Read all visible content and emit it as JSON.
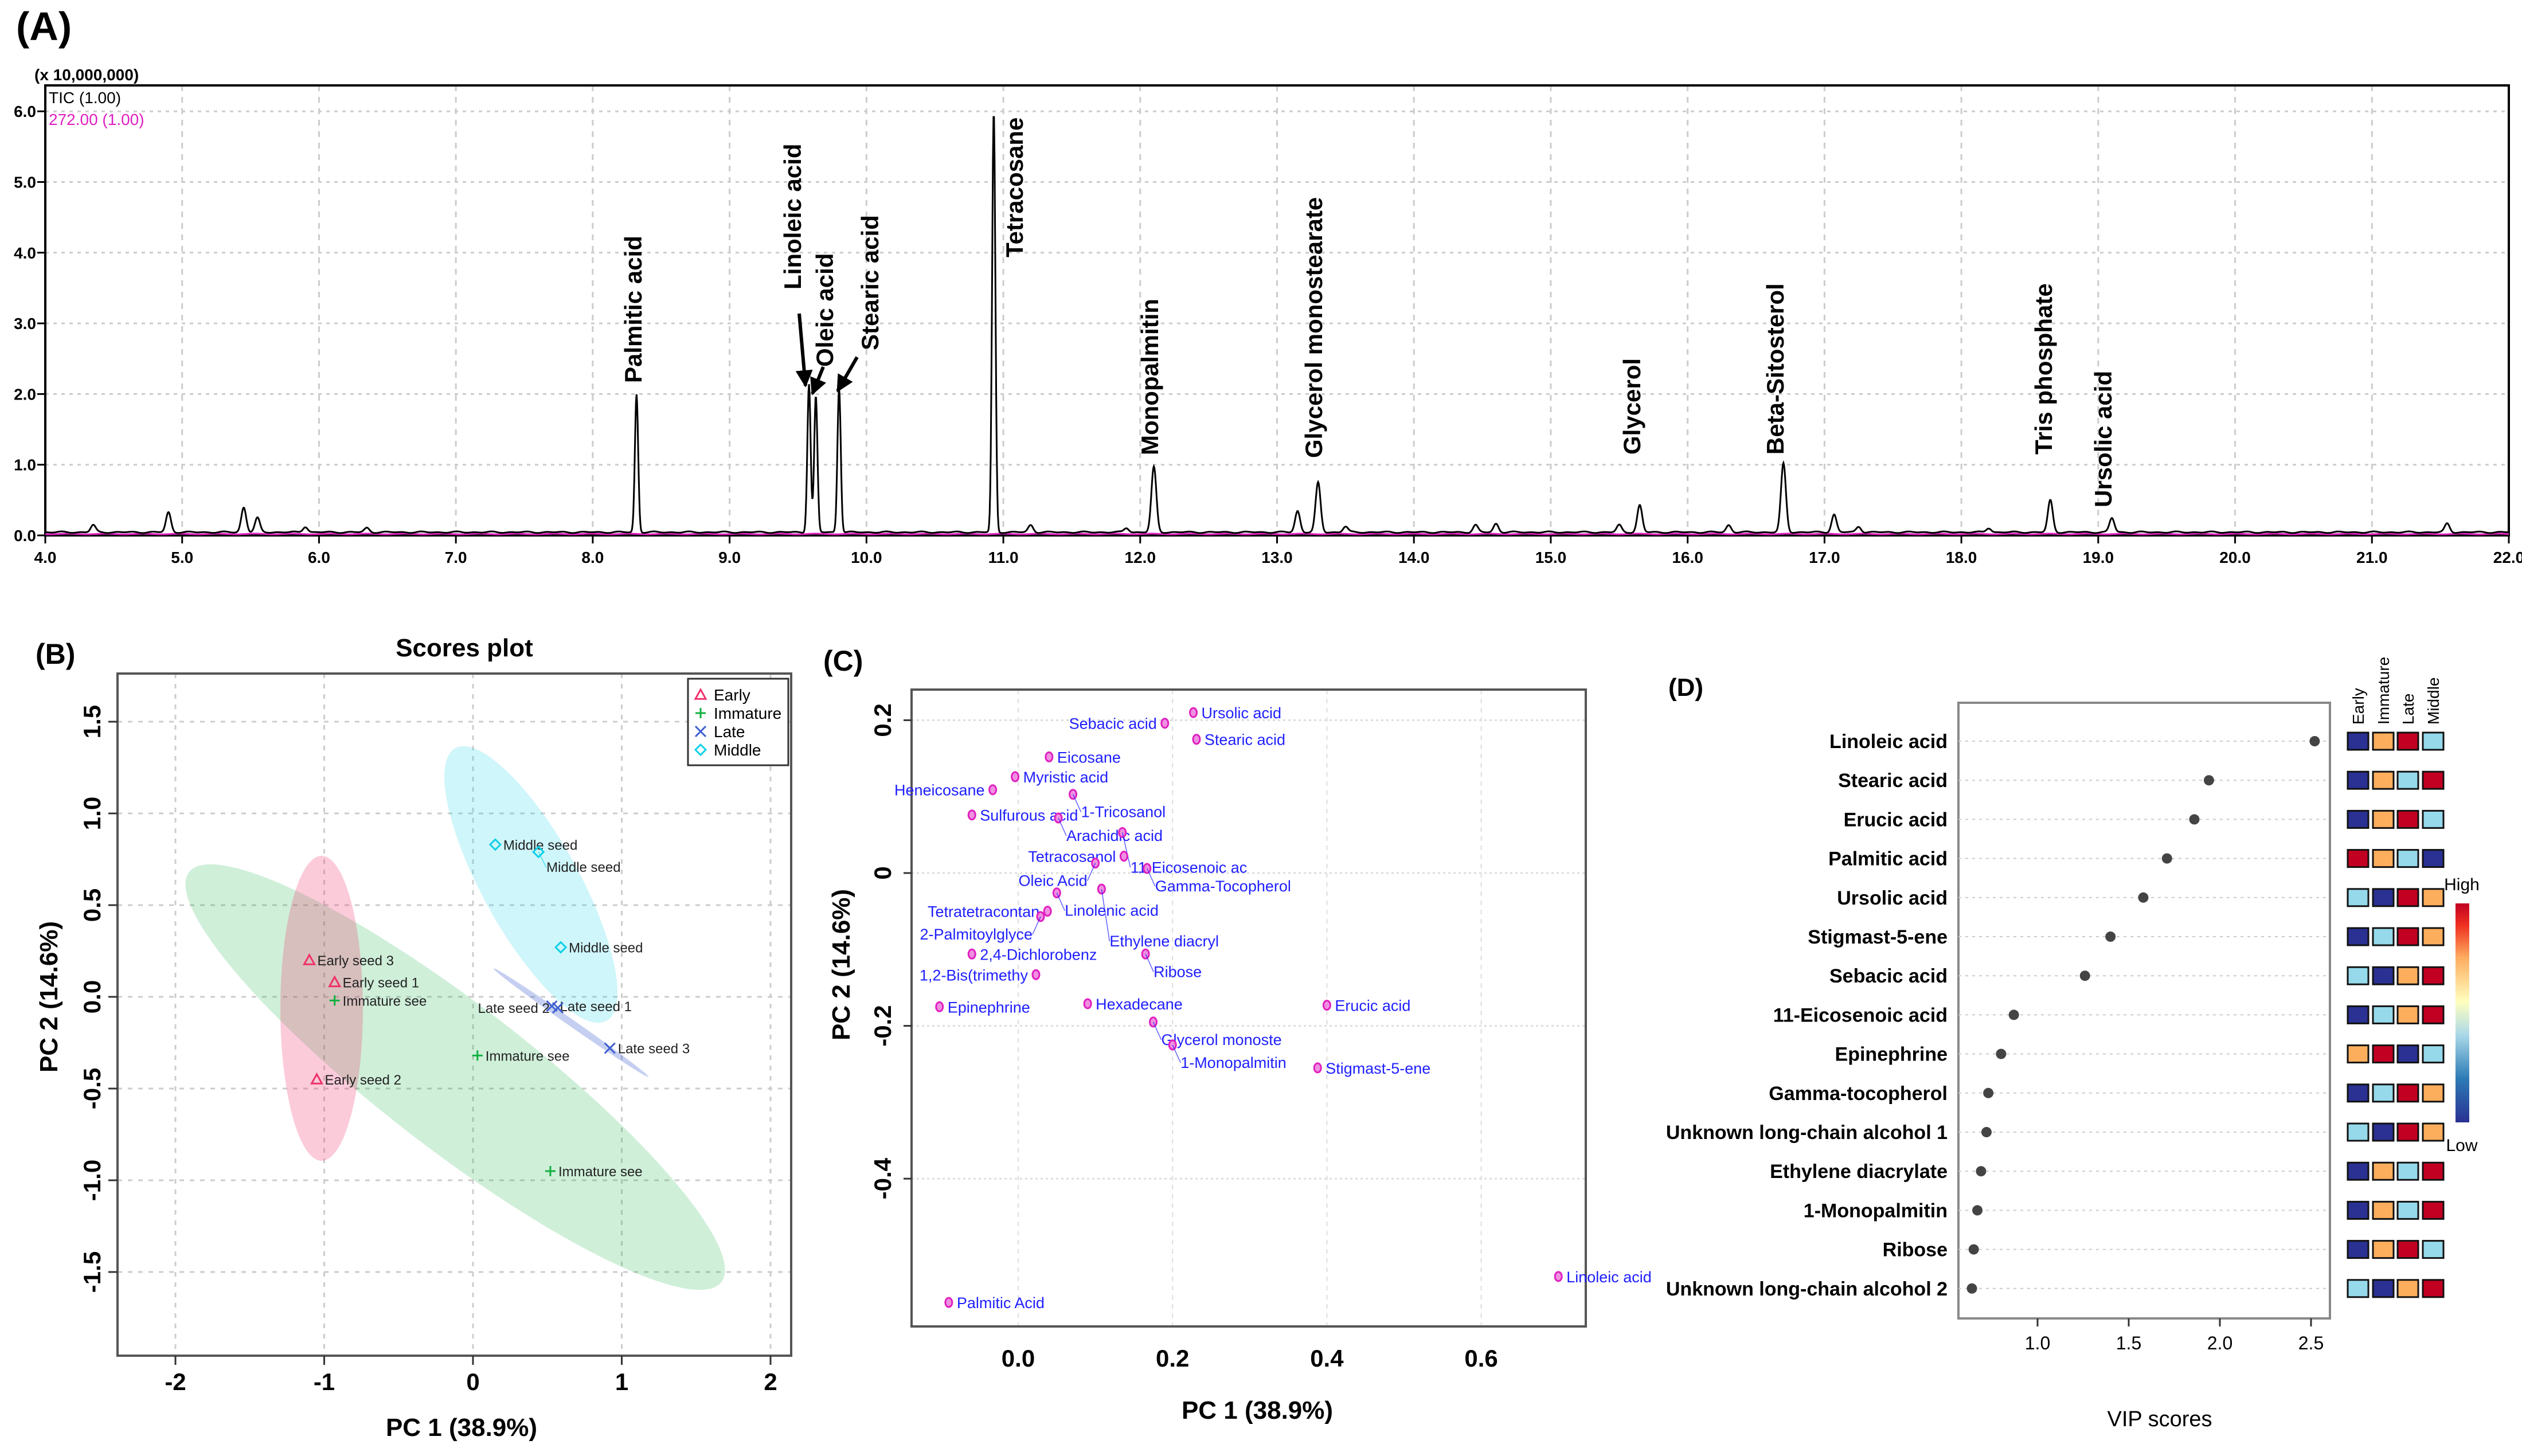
{
  "panel_labels": {
    "a": "(A)",
    "b": "(B)",
    "c": "(C)",
    "d": "(D)"
  },
  "chart_data": [
    {
      "id": "A",
      "type": "line",
      "title": "",
      "y_multiplier": "(x 10,000,000)",
      "legend": [
        {
          "name": "TIC (1.00)",
          "color": "#000000"
        },
        {
          "name": "272.00 (1.00)",
          "color": "#e020c0"
        }
      ],
      "xlim": [
        4.0,
        22.0
      ],
      "ylim": [
        0.0,
        6.0
      ],
      "x_ticks": [
        "4.0",
        "5.0",
        "6.0",
        "7.0",
        "8.0",
        "9.0",
        "10.0",
        "11.0",
        "12.0",
        "13.0",
        "14.0",
        "15.0",
        "16.0",
        "17.0",
        "18.0",
        "19.0",
        "20.0",
        "21.0",
        "22.0"
      ],
      "y_ticks": [
        "0.0",
        "1.0",
        "2.0",
        "3.0",
        "4.0",
        "5.0",
        "6.0"
      ],
      "labeled_peaks": [
        {
          "name": "Palmitic acid",
          "rt": 8.32,
          "height": 1.95
        },
        {
          "name": "Linoleic acid",
          "rt": 9.58,
          "height": 2.1
        },
        {
          "name": "Oleic acid",
          "rt": 9.63,
          "height": 1.92
        },
        {
          "name": "Stearic acid",
          "rt": 9.8,
          "height": 2.05
        },
        {
          "name": "Tetracosane",
          "rt": 10.93,
          "height": 5.95
        },
        {
          "name": "Monopalmitin",
          "rt": 12.1,
          "height": 0.92
        },
        {
          "name": "Glycerol monostearate",
          "rt": 13.3,
          "height": 0.7
        },
        {
          "name": "Glycerol",
          "rt": 15.65,
          "height": 0.38
        },
        {
          "name": "Beta-Sitosterol",
          "rt": 16.7,
          "height": 0.97
        },
        {
          "name": "Tris phosphate",
          "rt": 18.65,
          "height": 0.45
        },
        {
          "name": "Ursolic acid",
          "rt": 19.1,
          "height": 0.2
        }
      ],
      "minor_peaks": [
        {
          "rt": 4.35,
          "height": 0.1
        },
        {
          "rt": 4.9,
          "height": 0.28
        },
        {
          "rt": 5.45,
          "height": 0.35
        },
        {
          "rt": 5.55,
          "height": 0.2
        },
        {
          "rt": 5.9,
          "height": 0.08
        },
        {
          "rt": 6.35,
          "height": 0.06
        },
        {
          "rt": 11.2,
          "height": 0.1
        },
        {
          "rt": 11.9,
          "height": 0.06
        },
        {
          "rt": 13.15,
          "height": 0.3
        },
        {
          "rt": 13.5,
          "height": 0.08
        },
        {
          "rt": 14.45,
          "height": 0.1
        },
        {
          "rt": 14.6,
          "height": 0.12
        },
        {
          "rt": 15.5,
          "height": 0.1
        },
        {
          "rt": 16.3,
          "height": 0.1
        },
        {
          "rt": 17.07,
          "height": 0.25
        },
        {
          "rt": 17.25,
          "height": 0.08
        },
        {
          "rt": 18.2,
          "height": 0.06
        },
        {
          "rt": 21.55,
          "height": 0.12
        }
      ]
    },
    {
      "id": "B",
      "type": "scatter",
      "title": "Scores plot",
      "xlabel": "PC 1 (38.9%)",
      "ylabel": "PC 2 (14.6%)",
      "xlim": [
        -2.4,
        2.2
      ],
      "ylim": [
        -1.9,
        1.8
      ],
      "x_ticks": [
        -2,
        -1,
        0,
        1,
        2
      ],
      "y_ticks": [
        -1.5,
        -1.0,
        -0.5,
        0.0,
        0.5,
        1.0,
        1.5
      ],
      "x_tick_labels": [
        "-2",
        "-1",
        "0",
        "1",
        "2"
      ],
      "y_tick_labels": [
        "-1.5",
        "-1.0",
        "-0.5",
        "0.0",
        "0.5",
        "1.0",
        "1.5"
      ],
      "legend_position": "top-right",
      "groups": [
        {
          "name": "Early",
          "color": "#f0306a",
          "marker": "triangle"
        },
        {
          "name": "Immature",
          "color": "#10b040",
          "marker": "plus"
        },
        {
          "name": "Late",
          "color": "#4060d0",
          "marker": "x"
        },
        {
          "name": "Middle",
          "color": "#10d0e8",
          "marker": "diamond"
        }
      ],
      "points": [
        {
          "label": "Early seed 3",
          "group": "Early",
          "x": -1.1,
          "y": 0.2
        },
        {
          "label": "Early seed 1",
          "group": "Early",
          "x": -0.93,
          "y": 0.08
        },
        {
          "label": "Early seed 2",
          "group": "Early",
          "x": -1.05,
          "y": -0.45
        },
        {
          "label": "Immature see",
          "group": "Immature",
          "x": -0.93,
          "y": -0.02
        },
        {
          "label": "Immature see",
          "group": "Immature",
          "x": 0.03,
          "y": -0.32
        },
        {
          "label": "Immature see",
          "group": "Immature",
          "x": 0.52,
          "y": -0.95
        },
        {
          "label": "Middle seed",
          "group": "Middle",
          "x": 0.15,
          "y": 0.83
        },
        {
          "label": "Middle seed",
          "group": "Middle",
          "x": 0.44,
          "y": 0.79
        },
        {
          "label": "Middle seed",
          "group": "Middle",
          "x": 0.59,
          "y": 0.27
        },
        {
          "label": "Late seed 1",
          "group": "Late",
          "x": 0.53,
          "y": -0.05
        },
        {
          "label": "Late seed 2",
          "group": "Late",
          "x": 0.57,
          "y": -0.06
        },
        {
          "label": "Late seed 3",
          "group": "Late",
          "x": 0.92,
          "y": -0.28
        }
      ]
    },
    {
      "id": "C",
      "type": "scatter",
      "title": "",
      "xlabel": "PC 1 (38.9%)",
      "ylabel": "PC 2 (14.6%)",
      "xlim": [
        -0.14,
        0.74
      ],
      "ylim": [
        -0.59,
        0.24
      ],
      "x_ticks": [
        0.0,
        0.2,
        0.4,
        0.6
      ],
      "y_ticks": [
        -0.4,
        -0.2,
        0.0,
        0.2
      ],
      "x_tick_labels": [
        "0.0",
        "0.2",
        "0.4",
        "0.6"
      ],
      "y_tick_labels": [
        "-0.4",
        "-0.2",
        "0",
        "0.2"
      ],
      "point_color": "#e020c0",
      "label_color": "#2020ff",
      "points": [
        {
          "label": "Ursolic acid",
          "x": 0.227,
          "y": 0.21
        },
        {
          "label": "Sebacic acid",
          "x": 0.19,
          "y": 0.196
        },
        {
          "label": "Stearic acid",
          "x": 0.231,
          "y": 0.175
        },
        {
          "label": "Eicosane",
          "x": 0.04,
          "y": 0.152
        },
        {
          "label": "Myristic acid",
          "x": -0.004,
          "y": 0.126
        },
        {
          "label": "Heneicosane",
          "x": -0.033,
          "y": 0.109
        },
        {
          "label": "1-Tricosanol",
          "x": 0.071,
          "y": 0.103
        },
        {
          "label": "Sulfurous acid",
          "x": -0.06,
          "y": 0.076
        },
        {
          "label": "Arachidic acid",
          "x": 0.052,
          "y": 0.072
        },
        {
          "label": "11-Eicosenoic ac",
          "x": 0.135,
          "y": 0.053
        },
        {
          "label": "Tetracosanol",
          "x": 0.137,
          "y": 0.022
        },
        {
          "label": "Oleic Acid",
          "x": 0.1,
          "y": 0.013
        },
        {
          "label": "Gamma-Tocopherol",
          "x": 0.167,
          "y": 0.006
        },
        {
          "label": "Linolenic acid",
          "x": 0.05,
          "y": -0.026
        },
        {
          "label": "Ethylene diacryl",
          "x": 0.108,
          "y": -0.021
        },
        {
          "label": "Tetratetracontan",
          "x": 0.038,
          "y": -0.05
        },
        {
          "label": "2-Palmitoylglyce",
          "x": 0.029,
          "y": -0.057
        },
        {
          "label": "2,4-Dichlorobenz",
          "x": -0.06,
          "y": -0.106
        },
        {
          "label": "Ribose",
          "x": 0.165,
          "y": -0.106
        },
        {
          "label": "1,2-Bis(trimethy",
          "x": 0.023,
          "y": -0.133
        },
        {
          "label": "Epinephrine",
          "x": -0.102,
          "y": -0.175
        },
        {
          "label": "Hexadecane",
          "x": 0.09,
          "y": -0.171
        },
        {
          "label": "Erucic acid",
          "x": 0.4,
          "y": -0.173
        },
        {
          "label": "Glycerol monoste",
          "x": 0.175,
          "y": -0.195
        },
        {
          "label": "1-Monopalmitin",
          "x": 0.2,
          "y": -0.225
        },
        {
          "label": "Stigmast-5-ene",
          "x": 0.388,
          "y": -0.255
        },
        {
          "label": "Linoleic acid",
          "x": 0.7,
          "y": -0.528
        },
        {
          "label": "Palmitic Acid",
          "x": -0.09,
          "y": -0.562
        }
      ]
    },
    {
      "id": "D",
      "type": "scatter",
      "title": "",
      "xlabel": "VIP scores",
      "xlim": [
        0.55,
        2.6
      ],
      "x_ticks": [
        1.0,
        1.5,
        2.0,
        2.5
      ],
      "x_tick_labels": [
        "1.0",
        "1.5",
        "2.0",
        "2.5"
      ],
      "heatmap_columns": [
        "Early",
        "Immature",
        "Late",
        "Middle"
      ],
      "heatmap_scale": {
        "high_label": "High",
        "low_label": "Low"
      },
      "heat_colors": {
        "1": "#2a3192",
        "2": "#95d9ea",
        "3": "#fdae5d",
        "4": "#c20022"
      },
      "features": [
        {
          "name": "Linoleic acid",
          "vip": 2.52,
          "levels": [
            1,
            3,
            4,
            2
          ]
        },
        {
          "name": "Stearic acid",
          "vip": 1.94,
          "levels": [
            1,
            3,
            2,
            4
          ]
        },
        {
          "name": "Erucic acid",
          "vip": 1.86,
          "levels": [
            1,
            3,
            4,
            2
          ]
        },
        {
          "name": "Palmitic acid",
          "vip": 1.71,
          "levels": [
            4,
            3,
            2,
            1
          ]
        },
        {
          "name": "Ursolic acid",
          "vip": 1.58,
          "levels": [
            2,
            1,
            4,
            3
          ]
        },
        {
          "name": "Stigmast-5-ene",
          "vip": 1.4,
          "levels": [
            1,
            2,
            4,
            3
          ]
        },
        {
          "name": "Sebacic acid",
          "vip": 1.26,
          "levels": [
            2,
            1,
            3,
            4
          ]
        },
        {
          "name": "11-Eicosenoic acid",
          "vip": 0.87,
          "levels": [
            1,
            2,
            3,
            4
          ]
        },
        {
          "name": "Epinephrine",
          "vip": 0.8,
          "levels": [
            3,
            4,
            1,
            2
          ]
        },
        {
          "name": "Gamma-tocopherol",
          "vip": 0.73,
          "levels": [
            1,
            2,
            4,
            3
          ]
        },
        {
          "name": "Unknown long-chain alcohol 1",
          "vip": 0.72,
          "levels": [
            2,
            1,
            4,
            3
          ]
        },
        {
          "name": "Ethylene diacrylate",
          "vip": 0.69,
          "levels": [
            1,
            3,
            2,
            4
          ]
        },
        {
          "name": "1-Monopalmitin",
          "vip": 0.67,
          "levels": [
            1,
            3,
            2,
            4
          ]
        },
        {
          "name": "Ribose",
          "vip": 0.65,
          "levels": [
            1,
            3,
            4,
            2
          ]
        },
        {
          "name": "Unknown long-chain alcohol 2",
          "vip": 0.64,
          "levels": [
            2,
            1,
            3,
            4
          ]
        }
      ]
    }
  ]
}
